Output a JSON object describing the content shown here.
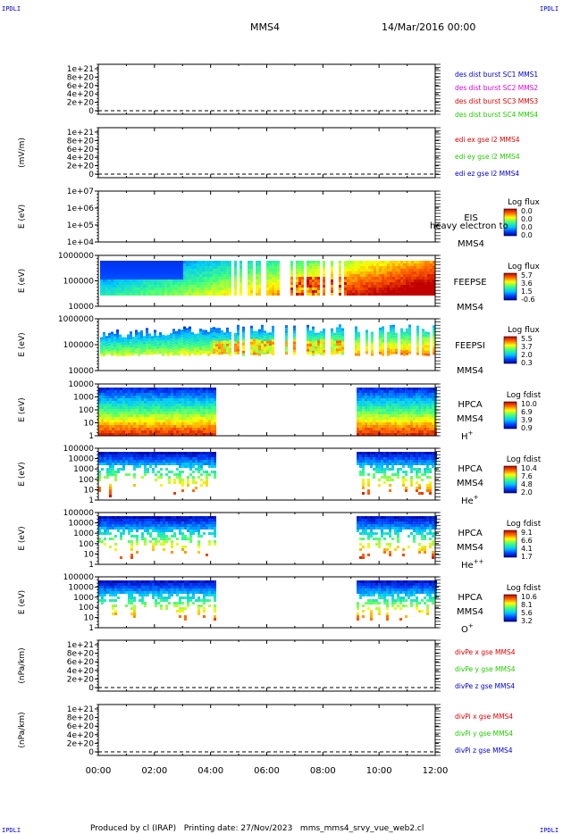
{
  "header": {
    "corner_tl": "IPDLI",
    "corner_tr": "IPDLI",
    "corner_bl": "IPDLI",
    "corner_br": "IPDLI",
    "spacecraft": "MMS4",
    "date": "14/Mar/2016 00:00"
  },
  "footer": {
    "credit": "Produced by cl (IRAP)   Printing date: 27/Nov/2023   mms_mms4_srvy_vue_web2.cl"
  },
  "colors": {
    "red": "#dd0000",
    "magenta": "#dd00dd",
    "green": "#22cc00",
    "blue": "#0000cc"
  },
  "time_axis": {
    "range_hours": [
      0,
      12
    ],
    "ticks": [
      "00:00",
      "02:00",
      "04:00",
      "06:00",
      "08:00",
      "10:00",
      "12:00"
    ]
  },
  "chart_data": [
    {
      "type": "line",
      "id": "des-dist",
      "ylabel": "",
      "yticks": [
        "1e+21",
        "8e+20",
        "6e+20",
        "4e+20",
        "2e+20",
        "0"
      ],
      "dashed_zero": true,
      "legend": [
        {
          "name": "des dist burst SC1 MMS1",
          "color": "#0000cc"
        },
        {
          "name": "des dist burst SC2 MMS2",
          "color": "#dd00dd"
        },
        {
          "name": "des dist burst SC3 MMS3",
          "color": "#dd0000"
        },
        {
          "name": "des dist burst SC4 MMS4",
          "color": "#22cc00"
        }
      ],
      "series": []
    },
    {
      "type": "line",
      "id": "edi-e",
      "ylabel": "(mV/m)",
      "yticks": [
        "1e+21",
        "8e+20",
        "6e+20",
        "4e+20",
        "2e+20",
        "0"
      ],
      "dashed_zero": true,
      "legend": [
        {
          "name": "edi ex gse l2 MMS4",
          "color": "#dd0000"
        },
        {
          "name": "edi ey gse l2 MMS4",
          "color": "#22cc00"
        },
        {
          "name": "edi ez gse l2 MMS4",
          "color": "#0000cc"
        }
      ],
      "series": []
    },
    {
      "type": "heatmap",
      "id": "eis",
      "ylabel": "E (eV)",
      "yticks": [
        "1e+07",
        "1e+06",
        "1e+05",
        "1e+04"
      ],
      "instrument": "EIS",
      "instrument_extra": "heavy electron to",
      "sc": "MMS4",
      "species": "",
      "cbar_title": "Log flux",
      "cbar_ticks": [
        "0.0",
        "0.0",
        "0.0",
        "0.0"
      ],
      "data_intervals_h": []
    },
    {
      "type": "heatmap",
      "id": "feeps-e",
      "ylabel": "E (eV)",
      "yticks": [
        "1000000",
        "100000",
        "10000"
      ],
      "instrument": "FEEPSE",
      "sc": "MMS4",
      "species": "",
      "cbar_title": "Log flux",
      "cbar_ticks": [
        "5.7",
        "3.6",
        "1.5",
        "-0.6"
      ],
      "data_intervals_h": [
        [
          0,
          12
        ]
      ]
    },
    {
      "type": "heatmap",
      "id": "feeps-i",
      "ylabel": "E (eV)",
      "yticks": [
        "1000000",
        "100000",
        "10000"
      ],
      "instrument": "FEEPSI",
      "sc": "MMS4",
      "species": "",
      "cbar_title": "Log flux",
      "cbar_ticks": [
        "5.5",
        "3.7",
        "2.0",
        "0.3"
      ],
      "data_intervals_h": [
        [
          0,
          12
        ]
      ]
    },
    {
      "type": "heatmap",
      "id": "hpca-h",
      "ylabel": "E (eV)",
      "yticks": [
        "10000",
        "1000",
        "100",
        "10",
        "1"
      ],
      "instrument": "HPCA",
      "sc": "MMS4",
      "species": "H+",
      "cbar_title": "Log fdist",
      "cbar_ticks": [
        "10.0",
        "6.9",
        "3.9",
        "0.9"
      ],
      "data_intervals_h": [
        [
          0,
          4.2
        ],
        [
          9.2,
          12
        ]
      ]
    },
    {
      "type": "heatmap",
      "id": "hpca-he",
      "ylabel": "E (eV)",
      "yticks": [
        "100000",
        "10000",
        "1000",
        "100",
        "10",
        "1"
      ],
      "instrument": "HPCA",
      "sc": "MMS4",
      "species": "He+",
      "cbar_title": "Log fdist",
      "cbar_ticks": [
        "10.4",
        "7.6",
        "4.8",
        "2.0"
      ],
      "data_intervals_h": [
        [
          0,
          4.2
        ],
        [
          9.2,
          12
        ]
      ]
    },
    {
      "type": "heatmap",
      "id": "hpca-hepp",
      "ylabel": "E (eV)",
      "yticks": [
        "100000",
        "10000",
        "1000",
        "100",
        "10",
        "1"
      ],
      "instrument": "HPCA",
      "sc": "MMS4",
      "species": "He++",
      "cbar_title": "Log fdist",
      "cbar_ticks": [
        "9.1",
        "6.6",
        "4.1",
        "1.7"
      ],
      "data_intervals_h": [
        [
          0,
          4.2
        ],
        [
          9.2,
          12
        ]
      ]
    },
    {
      "type": "heatmap",
      "id": "hpca-o",
      "ylabel": "E (eV)",
      "yticks": [
        "100000",
        "10000",
        "1000",
        "100",
        "10",
        "1"
      ],
      "instrument": "HPCA",
      "sc": "MMS4",
      "species": "O+",
      "cbar_title": "Log fdist",
      "cbar_ticks": [
        "10.6",
        "8.1",
        "5.6",
        "3.2"
      ],
      "data_intervals_h": [
        [
          0,
          4.2
        ],
        [
          9.2,
          12
        ]
      ]
    },
    {
      "type": "line",
      "id": "divpe",
      "ylabel": "(nPa/km)",
      "yticks": [
        "1e+21",
        "8e+20",
        "6e+20",
        "4e+20",
        "2e+20",
        "0"
      ],
      "dashed_zero": true,
      "legend": [
        {
          "name": "divPe x gse MMS4",
          "color": "#dd0000"
        },
        {
          "name": "divPe y gse MMS4",
          "color": "#22cc00"
        },
        {
          "name": "divPe z gse MMS4",
          "color": "#0000cc"
        }
      ],
      "series": []
    },
    {
      "type": "line",
      "id": "divpi",
      "ylabel": "(nPa/km)",
      "yticks": [
        "1e+21",
        "8e+20",
        "6e+20",
        "4e+20",
        "2e+20",
        "0"
      ],
      "dashed_zero": true,
      "legend": [
        {
          "name": "divPi x gse MMS4",
          "color": "#dd0000"
        },
        {
          "name": "divPi y gse MMS4",
          "color": "#22cc00"
        },
        {
          "name": "divPi z gse MMS4",
          "color": "#0000cc"
        }
      ],
      "series": []
    }
  ]
}
